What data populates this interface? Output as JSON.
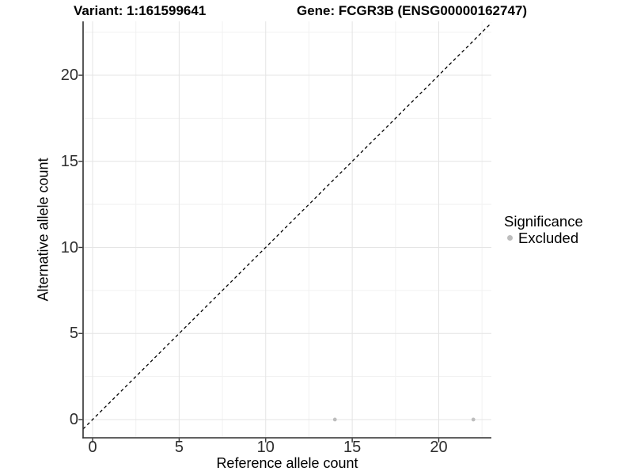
{
  "titles": {
    "variant": "Variant: 1:161599641",
    "gene": "Gene: FCGR3B (ENSG00000162747)"
  },
  "chart_data": {
    "type": "scatter",
    "xlabel": "Reference allele count",
    "ylabel": "Alternative allele count",
    "xlim": [
      -0.55,
      23.04
    ],
    "ylim": [
      -1.06,
      23.13
    ],
    "x_ticks": [
      0,
      5,
      10,
      15,
      20
    ],
    "y_ticks": [
      0,
      5,
      10,
      15,
      20
    ],
    "x_minor_gridlines": [
      2.5,
      7.5,
      12.5,
      17.5,
      22.5
    ],
    "y_minor_gridlines": [
      2.5,
      7.5,
      12.5,
      17.5,
      22.5
    ],
    "grid": "on",
    "identity_line": {
      "equation": "y = x",
      "slope": 1,
      "intercept": 0,
      "style": "dashed",
      "color": "#000000"
    },
    "series": [
      {
        "name": "Excluded",
        "color": "#bdbdbd",
        "points": [
          [
            14,
            0
          ],
          [
            22,
            0
          ]
        ]
      }
    ],
    "legend": {
      "title": "Significance",
      "position": "right",
      "entries": [
        {
          "label": "Excluded",
          "color": "#bdbdbd"
        }
      ]
    },
    "colors": {
      "background": "#ffffff",
      "axis_line": "#2f2f2f",
      "tick_mark": "#333333",
      "tick_text": "#2e2e2e",
      "grid_major": "#e4e4e4",
      "grid_minor": "#f1f1f1"
    }
  }
}
